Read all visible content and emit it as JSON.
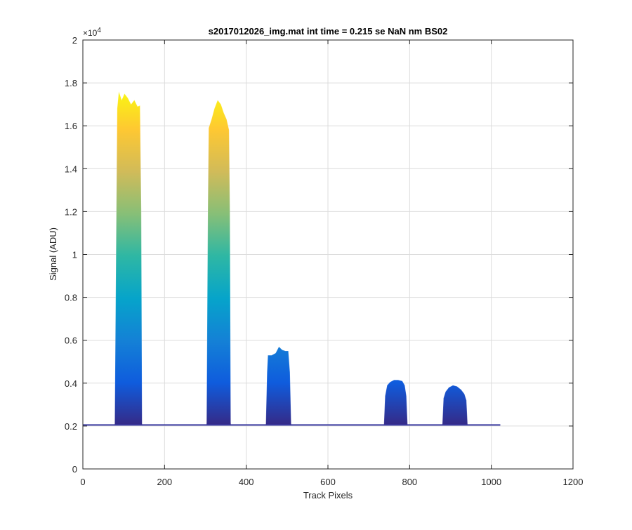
{
  "chart_data": {
    "type": "area",
    "title": "s2017012026_img.mat int time = 0.215 se  NaN nm BS02",
    "xlabel": "Track Pixels",
    "ylabel": "Signal (ADU)",
    "xlim": [
      0,
      1200
    ],
    "ylim": [
      0,
      20000
    ],
    "xticks": [
      0,
      200,
      400,
      600,
      800,
      1000,
      1200
    ],
    "yticks": [
      0,
      0.2,
      0.4,
      0.6,
      0.8,
      1,
      1.2,
      1.4,
      1.6,
      1.8,
      2
    ],
    "y_exponent_label": "×10",
    "y_exponent_power": "4",
    "grid": true,
    "colormap": "parula",
    "colors": {
      "parula": [
        "#352a87",
        "#0f5cdd",
        "#1481d6",
        "#06a4ca",
        "#2eb7a4",
        "#87bf77",
        "#d1bb59",
        "#fec832",
        "#f9fb0e"
      ],
      "baseline": "#3a3aa0",
      "grid": "#dcdcdc",
      "axis": "#262626"
    },
    "baseline": {
      "x": [
        0,
        1022
      ],
      "y": 2050
    },
    "peaks": [
      {
        "x_start": 78,
        "x_end": 145,
        "profile": [
          [
            78,
            2100
          ],
          [
            82,
            12000
          ],
          [
            84,
            16800
          ],
          [
            88,
            17600
          ],
          [
            95,
            17200
          ],
          [
            102,
            17500
          ],
          [
            110,
            17300
          ],
          [
            118,
            17000
          ],
          [
            126,
            17200
          ],
          [
            134,
            16900
          ],
          [
            140,
            16950
          ],
          [
            143,
            12000
          ],
          [
            145,
            2100
          ]
        ]
      },
      {
        "x_start": 303,
        "x_end": 362,
        "profile": [
          [
            303,
            2150
          ],
          [
            306,
            12000
          ],
          [
            308,
            15900
          ],
          [
            315,
            16300
          ],
          [
            322,
            16800
          ],
          [
            330,
            17200
          ],
          [
            338,
            17000
          ],
          [
            345,
            16600
          ],
          [
            352,
            16300
          ],
          [
            358,
            15800
          ],
          [
            360,
            12000
          ],
          [
            362,
            2150
          ]
        ]
      },
      {
        "x_start": 448,
        "x_end": 510,
        "profile": [
          [
            448,
            2100
          ],
          [
            451,
            4500
          ],
          [
            453,
            5300
          ],
          [
            462,
            5300
          ],
          [
            472,
            5400
          ],
          [
            480,
            5700
          ],
          [
            488,
            5550
          ],
          [
            496,
            5500
          ],
          [
            503,
            5500
          ],
          [
            507,
            4500
          ],
          [
            510,
            2100
          ]
        ]
      },
      {
        "x_start": 737,
        "x_end": 795,
        "profile": [
          [
            737,
            2050
          ],
          [
            740,
            3400
          ],
          [
            745,
            3900
          ],
          [
            752,
            4050
          ],
          [
            762,
            4150
          ],
          [
            772,
            4150
          ],
          [
            782,
            4100
          ],
          [
            788,
            3900
          ],
          [
            792,
            3400
          ],
          [
            795,
            2050
          ]
        ]
      },
      {
        "x_start": 880,
        "x_end": 942,
        "profile": [
          [
            880,
            2050
          ],
          [
            883,
            3300
          ],
          [
            888,
            3600
          ],
          [
            896,
            3800
          ],
          [
            906,
            3900
          ],
          [
            916,
            3850
          ],
          [
            926,
            3700
          ],
          [
            934,
            3500
          ],
          [
            939,
            3200
          ],
          [
            942,
            2050
          ]
        ]
      }
    ]
  }
}
